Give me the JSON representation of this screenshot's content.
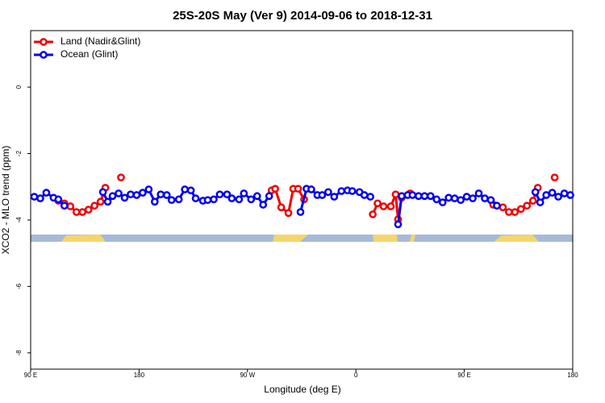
{
  "chart_data": {
    "type": "line",
    "title": "25S-20S May (Ver 9)   2014-09-06 to 2018-12-31",
    "x_label": "Longitude (deg E)",
    "y_label": "XCO2 - MLO trend (ppm)",
    "xlim": [
      90,
      540
    ],
    "xticks": [
      {
        "value": 90,
        "label": "90 E"
      },
      {
        "value": 180,
        "label": "180"
      },
      {
        "value": 270,
        "label": "90 W"
      },
      {
        "value": 360,
        "label": "0"
      },
      {
        "value": 450,
        "label": "90 E"
      },
      {
        "value": 540,
        "label": "180"
      }
    ],
    "ylim": [
      -8.49,
      1.7
    ],
    "yticks": [
      0,
      -2,
      -4,
      -6,
      -8
    ],
    "legend": "top-left",
    "series": [
      {
        "name": "Land (Nadir&Glint)",
        "color": "#ee0000",
        "x": [
          113,
          118,
          123,
          128,
          133,
          138,
          143,
          148,
          152,
          null,
          165,
          null,
          290,
          293,
          298,
          304,
          308,
          312,
          317,
          null,
          374,
          378,
          383,
          389,
          393,
          395,
          398,
          405,
          null,
          474,
          482,
          487,
          492,
          497,
          502,
          507,
          511,
          null,
          525
        ],
        "values": [
          -3.42,
          -3.5,
          -3.59,
          -3.76,
          -3.76,
          -3.69,
          -3.57,
          -3.45,
          -3.03,
          null,
          -2.72,
          null,
          -3.11,
          -3.06,
          -3.62,
          -3.79,
          -3.06,
          -3.06,
          -3.38,
          null,
          -3.83,
          -3.5,
          -3.59,
          -3.59,
          -3.23,
          -3.98,
          -3.33,
          -3.2,
          null,
          -3.54,
          -3.62,
          -3.76,
          -3.76,
          -3.67,
          -3.57,
          -3.42,
          -3.03,
          null,
          -2.72
        ]
      },
      {
        "name": "Ocean (Glint)",
        "color": "#0000ee",
        "x": [
          93,
          98,
          103,
          109,
          113,
          118,
          null,
          150,
          154,
          158,
          163,
          168,
          173,
          178,
          183,
          188,
          193,
          198,
          203,
          207,
          213,
          218,
          223,
          227,
          233,
          237,
          242,
          247,
          253,
          257,
          263,
          267,
          273,
          278,
          283,
          288,
          null,
          314,
          319,
          323,
          328,
          332,
          337,
          342,
          348,
          353,
          357,
          363,
          367,
          372,
          null,
          395,
          398,
          403,
          407,
          412,
          417,
          422,
          427,
          432,
          437,
          442,
          447,
          452,
          457,
          462,
          467,
          472,
          477,
          null,
          509,
          513,
          518,
          523,
          528,
          533,
          538
        ],
        "values": [
          -3.3,
          -3.35,
          -3.18,
          -3.33,
          -3.38,
          -3.57,
          null,
          -3.16,
          -3.45,
          -3.28,
          -3.2,
          -3.33,
          -3.23,
          -3.25,
          -3.18,
          -3.08,
          -3.45,
          -3.23,
          -3.25,
          -3.4,
          -3.38,
          -3.08,
          -3.11,
          -3.35,
          -3.42,
          -3.4,
          -3.38,
          -3.23,
          -3.23,
          -3.35,
          -3.38,
          -3.2,
          -3.38,
          -3.28,
          -3.54,
          -3.28,
          null,
          -3.76,
          -3.06,
          -3.08,
          -3.25,
          -3.25,
          -3.16,
          -3.3,
          -3.13,
          -3.11,
          -3.13,
          -3.16,
          -3.25,
          -3.3,
          null,
          -4.13,
          -3.28,
          -3.25,
          -3.25,
          -3.28,
          -3.28,
          -3.28,
          -3.38,
          -3.47,
          -3.33,
          -3.35,
          -3.4,
          -3.3,
          -3.35,
          -3.2,
          -3.35,
          -3.4,
          -3.57,
          null,
          -3.16,
          -3.47,
          -3.25,
          -3.18,
          -3.3,
          -3.2,
          -3.25
        ]
      }
    ]
  }
}
